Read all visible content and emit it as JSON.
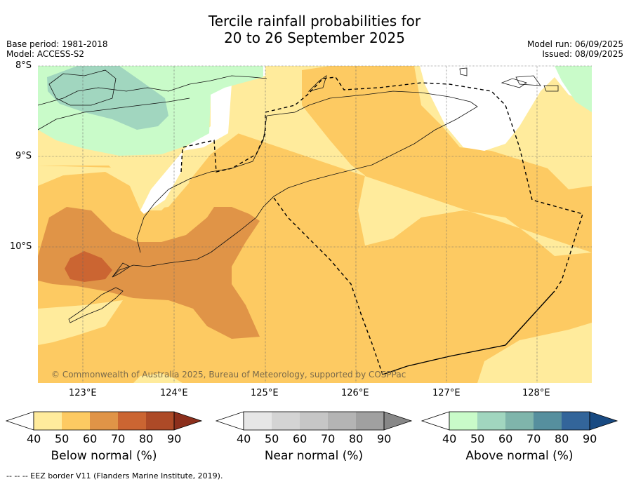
{
  "title": {
    "line1": "Tercile rainfall probabilities for",
    "line2": "20 to 26 September 2025"
  },
  "meta_left": {
    "base_period": "Base period: 1981-2018",
    "model": "Model: ACCESS-S2"
  },
  "meta_right": {
    "model_run": "Model run: 06/09/2025",
    "issued": "Issued: 08/09/2025"
  },
  "map": {
    "lat_labels": [
      "8°S",
      "9°S",
      "10°S"
    ],
    "lon_labels": [
      "123°E",
      "124°E",
      "125°E",
      "126°E",
      "127°E",
      "128°E"
    ],
    "copyright": "© Commonwealth of Australia 2025, Bureau of Meteorology, supported by COSPPac"
  },
  "colorbars": [
    {
      "label": "Below normal (%)",
      "ticks": [
        "40",
        "50",
        "60",
        "70",
        "80",
        "90"
      ],
      "colors": [
        "#ffffff",
        "#ffeb9c",
        "#fdca62",
        "#e09447",
        "#cb6532",
        "#ad4a27",
        "#8c2f1c"
      ]
    },
    {
      "label": "Near normal (%)",
      "ticks": [
        "40",
        "50",
        "60",
        "70",
        "80",
        "90"
      ],
      "colors": [
        "#ffffff",
        "#e6e6e6",
        "#d4d4d4",
        "#c6c6c6",
        "#b4b4b4",
        "#a0a0a0",
        "#878787"
      ]
    },
    {
      "label": "Above normal (%)",
      "ticks": [
        "40",
        "50",
        "60",
        "70",
        "80",
        "90"
      ],
      "colors": [
        "#ffffff",
        "#c9fbc9",
        "#a1d6bf",
        "#7fb5ab",
        "#568f9e",
        "#33659a",
        "#184a82"
      ]
    }
  ],
  "footer": "--  --  -- EEZ border V11 (Flanders Marine Institute, 2019)."
}
